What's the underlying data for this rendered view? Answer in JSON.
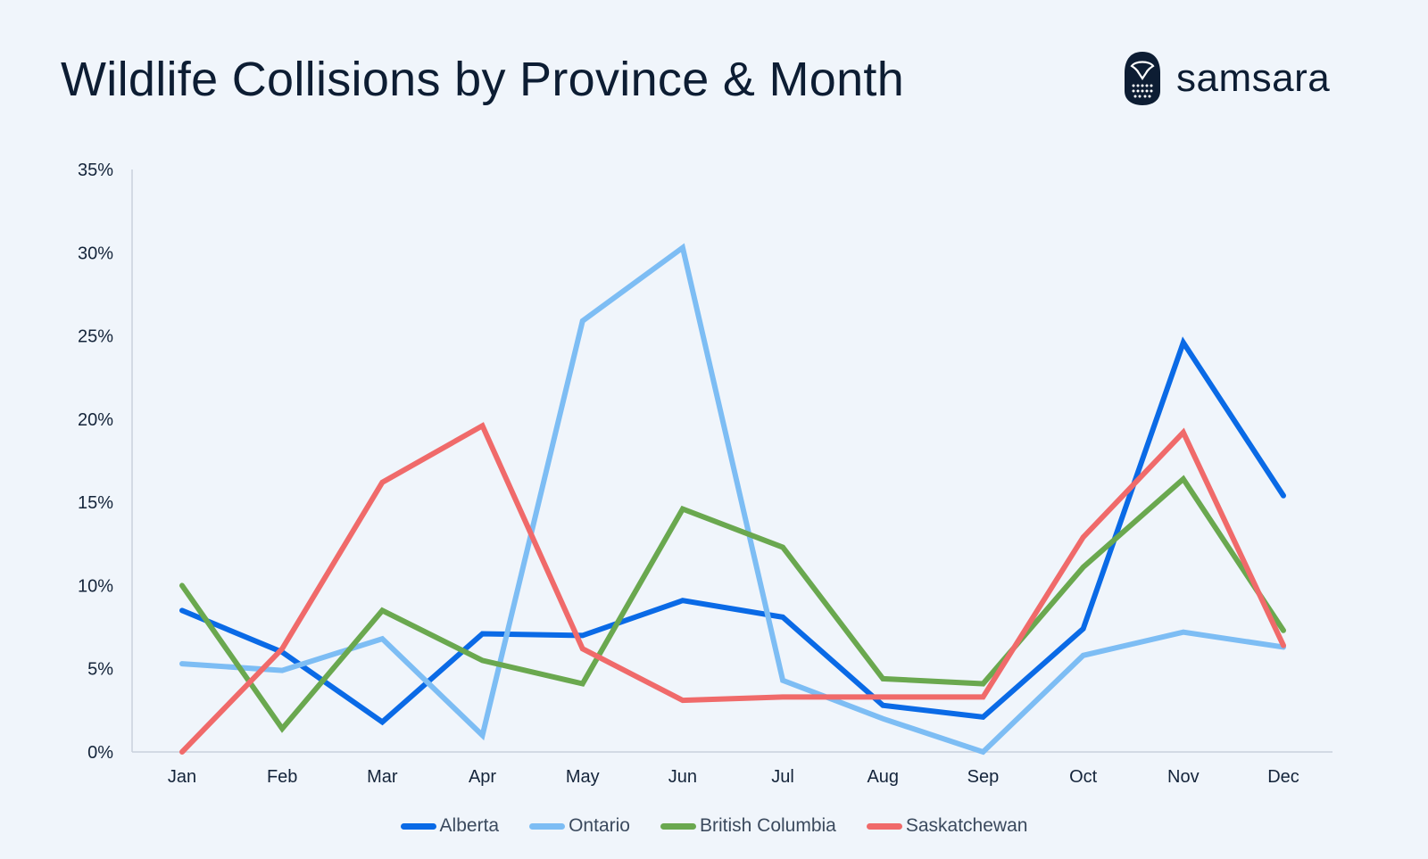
{
  "title": "Wildlife Collisions by Province & Month",
  "brand": {
    "name": "samsara",
    "icon": "owl-logo-icon"
  },
  "colors": {
    "background": "#f0f5fb",
    "Alberta": "#0a6ae6",
    "Ontario": "#7dbdf4",
    "British Columbia": "#6aa84f",
    "Saskatchewan": "#f06a6a"
  },
  "chart_data": {
    "type": "line",
    "categories": [
      "Jan",
      "Feb",
      "Mar",
      "Apr",
      "May",
      "Jun",
      "Jul",
      "Aug",
      "Sep",
      "Oct",
      "Nov",
      "Dec"
    ],
    "y_ticks": [
      "0%",
      "5%",
      "10%",
      "15%",
      "20%",
      "25%",
      "30%",
      "35%"
    ],
    "ylim": [
      0,
      35
    ],
    "y_unit": "%",
    "grid": false,
    "legend_position": "bottom-center",
    "series": [
      {
        "name": "Alberta",
        "values": [
          8.5,
          6.0,
          1.8,
          7.1,
          7.0,
          9.1,
          8.1,
          2.8,
          2.1,
          7.4,
          24.6,
          15.4
        ]
      },
      {
        "name": "Ontario",
        "values": [
          5.3,
          4.9,
          6.8,
          1.0,
          25.9,
          30.3,
          4.3,
          2.0,
          0.0,
          5.8,
          7.2,
          6.3
        ]
      },
      {
        "name": "British Columbia",
        "values": [
          10.0,
          1.4,
          8.5,
          5.5,
          4.1,
          14.6,
          12.3,
          4.4,
          4.1,
          11.1,
          16.4,
          7.3
        ]
      },
      {
        "name": "Saskatchewan",
        "values": [
          0.0,
          6.2,
          16.2,
          19.6,
          6.2,
          3.1,
          3.3,
          3.3,
          3.3,
          12.9,
          19.2,
          6.4
        ]
      }
    ]
  }
}
